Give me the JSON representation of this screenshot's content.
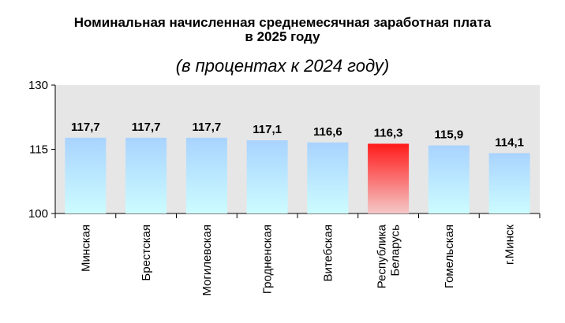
{
  "chart_data": {
    "type": "bar",
    "title_line1": "Номинальная начисленная среднемесячная заработная плата",
    "title_line2": "в 2025 году",
    "subtitle": "(в процентах к 2024 году)",
    "categories": [
      [
        "Минская"
      ],
      [
        "Брестская"
      ],
      [
        "Могилевская"
      ],
      [
        "Гродненская"
      ],
      [
        "Витебская"
      ],
      [
        "Республика",
        "Беларусь"
      ],
      [
        "Гомельская"
      ],
      [
        "г.Минск"
      ]
    ],
    "values": [
      117.7,
      117.7,
      117.7,
      117.1,
      116.6,
      116.3,
      115.9,
      114.1
    ],
    "value_labels": [
      "117,7",
      "117,7",
      "117,7",
      "117,1",
      "116,6",
      "116,3",
      "115,9",
      "114,1"
    ],
    "ylim": [
      100,
      130
    ],
    "yticks": [
      100,
      115,
      130
    ],
    "ytick_labels": [
      "100",
      "115",
      "130"
    ],
    "highlight_index": 5,
    "grid": false,
    "colors": {
      "plot_background": "#e6e6e6",
      "bar_top": "#a9d3ff",
      "bar_bottom": "#ccfcff",
      "highlight_top": "#ff1a1a",
      "highlight_bottom": "#f5c8c8"
    }
  }
}
